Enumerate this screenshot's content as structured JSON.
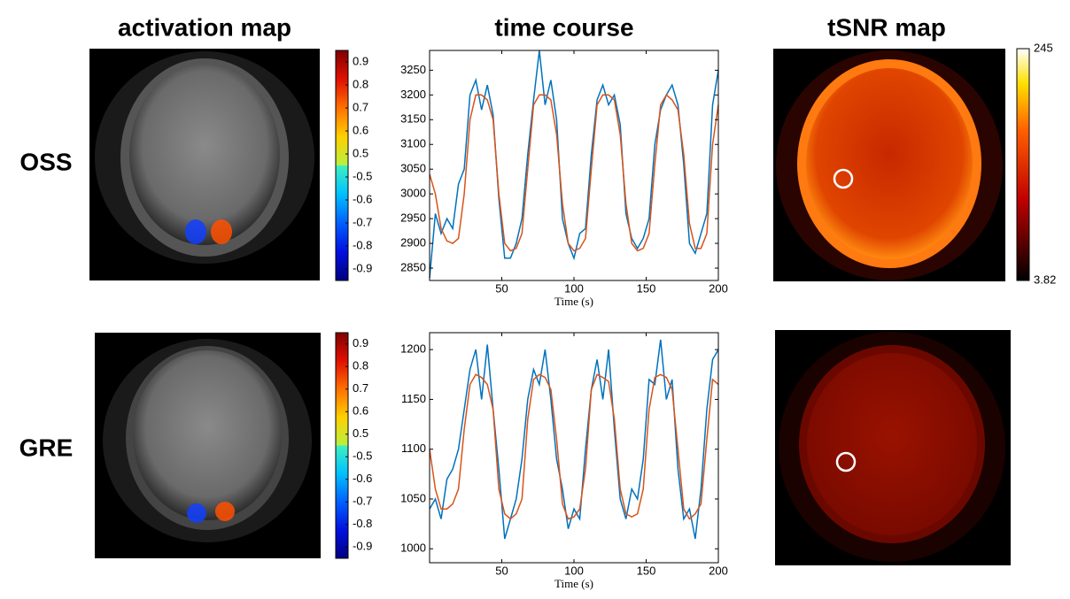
{
  "titles": [
    "activation map",
    "time course",
    "tSNR map"
  ],
  "row_labels": [
    "OSS",
    "GRE"
  ],
  "chart_data": [
    {
      "type": "colorbar",
      "segments": [
        {
          "ylim": [
            0.45,
            0.95
          ],
          "yticks": [
            0.5,
            0.6,
            0.7,
            0.8,
            0.9
          ],
          "colormap": "jet-positive"
        },
        {
          "ylim": [
            -0.95,
            -0.45
          ],
          "yticks": [
            -0.9,
            -0.8,
            -0.7,
            -0.6,
            -0.5
          ],
          "colormap": "jet-negative"
        }
      ]
    },
    {
      "type": "line",
      "xlabel": "Time (s)",
      "xlim": [
        0,
        200
      ],
      "xticks": [
        50,
        100,
        150,
        200
      ],
      "ylim": [
        2825,
        3290
      ],
      "yticks": [
        2850,
        2900,
        2950,
        3000,
        3050,
        3100,
        3150,
        3200,
        3250
      ],
      "x": [
        0,
        4,
        8,
        12,
        16,
        20,
        24,
        28,
        32,
        36,
        40,
        44,
        48,
        52,
        56,
        60,
        64,
        68,
        72,
        76,
        80,
        84,
        88,
        92,
        96,
        100,
        104,
        108,
        112,
        116,
        120,
        124,
        128,
        132,
        136,
        140,
        144,
        148,
        152,
        156,
        160,
        164,
        168,
        172,
        176,
        180,
        184,
        188,
        192,
        196,
        200
      ],
      "series": [
        {
          "color": "#0072bd",
          "values": [
            2830,
            2960,
            2920,
            2950,
            2930,
            3020,
            3050,
            3200,
            3230,
            3170,
            3220,
            3160,
            2990,
            2870,
            2870,
            2900,
            2950,
            3080,
            3190,
            3290,
            3180,
            3230,
            3150,
            2950,
            2900,
            2870,
            2920,
            2930,
            3080,
            3190,
            3220,
            3180,
            3200,
            3140,
            2960,
            2910,
            2890,
            2910,
            2950,
            3100,
            3170,
            3200,
            3220,
            3180,
            3060,
            2900,
            2880,
            2920,
            2960,
            3180,
            3250
          ]
        },
        {
          "color": "#d95319",
          "values": [
            3040,
            3000,
            2930,
            2905,
            2900,
            2910,
            3000,
            3150,
            3200,
            3200,
            3190,
            3150,
            3000,
            2900,
            2885,
            2890,
            2920,
            3050,
            3180,
            3200,
            3200,
            3190,
            3120,
            2980,
            2900,
            2885,
            2890,
            2910,
            3050,
            3180,
            3200,
            3200,
            3190,
            3120,
            2980,
            2900,
            2885,
            2890,
            2920,
            3060,
            3180,
            3200,
            3190,
            3170,
            3080,
            2940,
            2890,
            2890,
            2920,
            3100,
            3180
          ]
        }
      ]
    },
    {
      "type": "colorbar",
      "segments": [
        {
          "ylim": [
            3.82,
            245
          ],
          "yticks": [
            3.82,
            245
          ],
          "colormap": "hot"
        }
      ]
    },
    {
      "type": "colorbar",
      "segments": [
        {
          "ylim": [
            0.45,
            0.95
          ],
          "yticks": [
            0.5,
            0.6,
            0.7,
            0.8,
            0.9
          ],
          "colormap": "jet-positive"
        },
        {
          "ylim": [
            -0.95,
            -0.45
          ],
          "yticks": [
            -0.9,
            -0.8,
            -0.7,
            -0.6,
            -0.5
          ],
          "colormap": "jet-negative"
        }
      ]
    },
    {
      "type": "line",
      "xlabel": "Time (s)",
      "xlim": [
        0,
        200
      ],
      "xticks": [
        50,
        100,
        150,
        200
      ],
      "ylim": [
        986,
        1217
      ],
      "yticks": [
        1000,
        1050,
        1100,
        1150,
        1200
      ],
      "x": [
        0,
        4,
        8,
        12,
        16,
        20,
        24,
        28,
        32,
        36,
        40,
        44,
        48,
        52,
        56,
        60,
        64,
        68,
        72,
        76,
        80,
        84,
        88,
        92,
        96,
        100,
        104,
        108,
        112,
        116,
        120,
        124,
        128,
        132,
        136,
        140,
        144,
        148,
        152,
        156,
        160,
        164,
        168,
        172,
        176,
        180,
        184,
        188,
        192,
        196,
        200
      ],
      "series": [
        {
          "color": "#0072bd",
          "values": [
            1040,
            1050,
            1030,
            1070,
            1080,
            1100,
            1140,
            1180,
            1200,
            1150,
            1205,
            1140,
            1080,
            1010,
            1030,
            1050,
            1090,
            1150,
            1180,
            1165,
            1200,
            1150,
            1090,
            1060,
            1020,
            1040,
            1030,
            1100,
            1160,
            1190,
            1150,
            1200,
            1120,
            1050,
            1030,
            1060,
            1050,
            1090,
            1170,
            1165,
            1210,
            1150,
            1170,
            1080,
            1030,
            1040,
            1010,
            1060,
            1140,
            1190,
            1200
          ]
        },
        {
          "color": "#d95319",
          "values": [
            1100,
            1060,
            1040,
            1040,
            1045,
            1060,
            1120,
            1165,
            1175,
            1172,
            1165,
            1140,
            1060,
            1035,
            1030,
            1035,
            1050,
            1130,
            1170,
            1175,
            1172,
            1160,
            1110,
            1045,
            1030,
            1032,
            1040,
            1080,
            1160,
            1175,
            1172,
            1168,
            1130,
            1060,
            1035,
            1032,
            1035,
            1060,
            1140,
            1172,
            1175,
            1172,
            1160,
            1100,
            1040,
            1030,
            1035,
            1045,
            1110,
            1170,
            1165
          ]
        }
      ]
    }
  ]
}
